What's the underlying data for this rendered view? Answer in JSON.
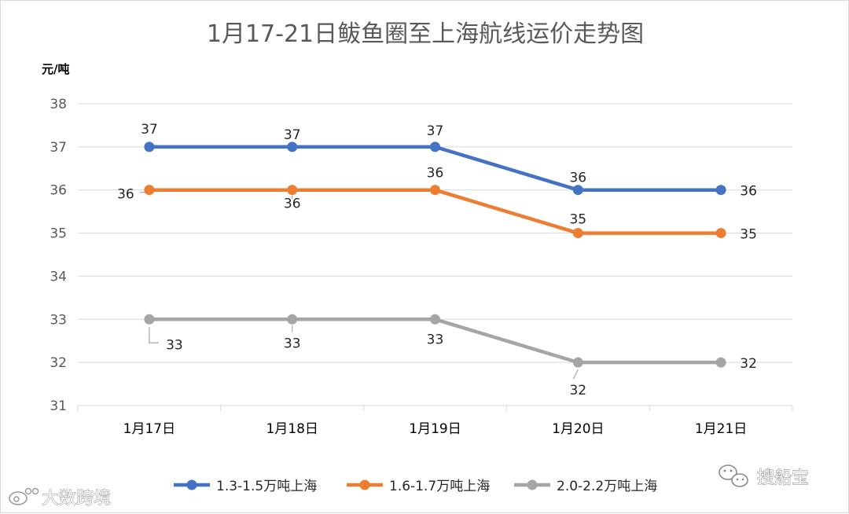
{
  "chart_data": {
    "type": "line",
    "title": "1月17-21日鲅鱼圈至上海航线运价走势图",
    "ylabel": "元/吨",
    "xlabel": "",
    "ylim": [
      31,
      38
    ],
    "yticks": [
      "31",
      "32",
      "33",
      "34",
      "35",
      "36",
      "37",
      "38"
    ],
    "categories": [
      "1月17日",
      "1月18日",
      "1月19日",
      "1月20日",
      "1月21日"
    ],
    "grid": true,
    "legend_position": "bottom",
    "series": [
      {
        "name": "1.3-1.5万吨上海",
        "color": "#4472c4",
        "values": [
          37,
          37,
          37,
          36,
          36
        ],
        "labels": [
          "37",
          "37",
          "37",
          "36",
          "36"
        ]
      },
      {
        "name": "1.6-1.7万吨上海",
        "color": "#ed7d31",
        "values": [
          36,
          36,
          36,
          35,
          35
        ],
        "labels": [
          "36",
          "36",
          "36",
          "35",
          "35"
        ]
      },
      {
        "name": "2.0-2.2万吨上海",
        "color": "#a5a5a5",
        "values": [
          33,
          33,
          33,
          32,
          32
        ],
        "labels": [
          "33",
          "33",
          "33",
          "32",
          "32"
        ]
      }
    ]
  },
  "watermarks": {
    "left_logo_text": "大数跨境",
    "right_logo_text": "搜船宝",
    "left_icon": "weibo-icon",
    "right_icon": "wechat-icon"
  }
}
